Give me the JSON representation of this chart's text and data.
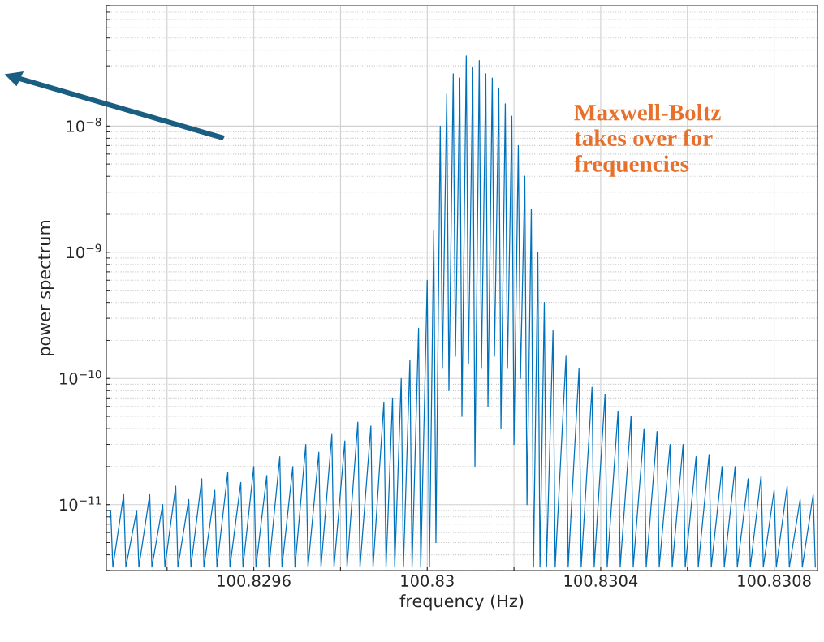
{
  "chart_data": {
    "type": "line",
    "xlabel": "frequency (Hz)",
    "ylabel": "power spectrum",
    "log": "y",
    "grid": true,
    "annotations": [
      "Maxwell-Boltz\ntakes over for\nfrequencies"
    ],
    "xlim": [
      100.82926,
      100.8309
    ],
    "ylim": [
      3e-12,
      9e-08
    ],
    "xticks": [
      {
        "value": 100.8294,
        "label": null
      },
      100.8296,
      {
        "value": 100.8298,
        "label": null
      },
      {
        "value": 100.83,
        "label": "100.83"
      },
      {
        "value": 100.8302,
        "label": null
      },
      100.8304,
      {
        "value": 100.8306,
        "label": null
      },
      100.8308
    ],
    "yticks": [
      {
        "value": 1e-11,
        "label": "10$^{−11}$"
      },
      {
        "value": 1e-10,
        "label": "10$^{−10}$"
      },
      {
        "value": 1e-09,
        "label": "10$^{−9}$"
      },
      {
        "value": 1e-08,
        "label": "10$^{−8}$"
      }
    ],
    "series": [
      {
        "color": "#0072bd",
        "x": [
          100.82927,
          100.829275,
          100.8293,
          100.829305,
          100.82933,
          100.829335,
          100.82936,
          100.829365,
          100.82939,
          100.829395,
          100.82942,
          100.829425,
          100.82945,
          100.829455,
          100.82948,
          100.829485,
          100.82951,
          100.829515,
          100.82954,
          100.829545,
          100.82957,
          100.829575,
          100.8296,
          100.829605,
          100.82963,
          100.829635,
          100.82966,
          100.829665,
          100.82969,
          100.829695,
          100.82972,
          100.829725,
          100.82975,
          100.829755,
          100.82978,
          100.829785,
          100.82981,
          100.829815,
          100.82984,
          100.829845,
          100.82987,
          100.829875,
          100.8299,
          100.829905,
          100.82992,
          100.829925,
          100.82994,
          100.829945,
          100.82996,
          100.829965,
          100.82998,
          100.829985,
          100.83,
          100.830005,
          100.830015,
          100.83002,
          100.83003,
          100.830035,
          100.830045,
          100.83005,
          100.83006,
          100.830065,
          100.830075,
          100.83008,
          100.83009,
          100.830095,
          100.830105,
          100.83011,
          100.83012,
          100.830125,
          100.830135,
          100.83014,
          100.83015,
          100.830155,
          100.830165,
          100.83017,
          100.83018,
          100.830185,
          100.830195,
          100.8302,
          100.83021,
          100.830215,
          100.830225,
          100.83023,
          100.83024,
          100.830245,
          100.830255,
          100.83026,
          100.83027,
          100.830275,
          100.83029,
          100.830295,
          100.83032,
          100.830325,
          100.83035,
          100.830355,
          100.83038,
          100.830385,
          100.83041,
          100.830415,
          100.83044,
          100.830445,
          100.83047,
          100.830475,
          100.8305,
          100.830505,
          100.83053,
          100.830535,
          100.83056,
          100.830565,
          100.83059,
          100.830595,
          100.83062,
          100.830625,
          100.83065,
          100.830655,
          100.83068,
          100.830685,
          100.83071,
          100.830715,
          100.83074,
          100.830745,
          100.83077,
          100.830775,
          100.8308,
          100.830805,
          100.83083,
          100.830835,
          100.83086,
          100.830865,
          100.83089,
          100.830895
        ],
        "values": [
          9e-12,
          3.2e-12,
          1.2e-11,
          3.2e-12,
          9e-12,
          3.2e-12,
          1.2e-11,
          3.2e-12,
          1e-11,
          3.2e-12,
          1.4e-11,
          3.2e-12,
          1.1e-11,
          3.2e-12,
          1.6e-11,
          3.2e-12,
          1.3e-11,
          3.2e-12,
          1.8e-11,
          3.2e-12,
          1.5e-11,
          3.2e-12,
          2e-11,
          3.2e-12,
          1.7e-11,
          3.2e-12,
          2.4e-11,
          3.2e-12,
          2e-11,
          3.2e-12,
          3e-11,
          3.2e-12,
          2.6e-11,
          3.2e-12,
          3.6e-11,
          3.2e-12,
          3.2e-11,
          3.2e-12,
          4.5e-11,
          3.2e-12,
          4.2e-11,
          3.2e-12,
          6.5e-11,
          3.2e-12,
          7e-11,
          3.2e-12,
          1e-10,
          3.2e-12,
          1.4e-10,
          3.2e-12,
          2.5e-10,
          3.2e-12,
          6e-10,
          3.2e-12,
          1.5e-09,
          5e-12,
          1e-08,
          1.2e-10,
          1.8e-08,
          8e-11,
          2.6e-08,
          1.5e-10,
          2.4e-08,
          5e-11,
          3.6e-08,
          1.3e-10,
          2.9e-08,
          2e-11,
          3.3e-08,
          1.2e-10,
          2.6e-08,
          6e-11,
          2.4e-08,
          1.5e-10,
          2e-08,
          4e-11,
          1.5e-08,
          1.2e-10,
          1.2e-08,
          3e-11,
          7e-09,
          1e-10,
          4e-09,
          1e-11,
          2.2e-09,
          3.2e-12,
          1e-09,
          3.2e-12,
          4e-10,
          3.2e-12,
          2.4e-10,
          3.2e-12,
          1.5e-10,
          3.2e-12,
          1.2e-10,
          3.2e-12,
          8.5e-11,
          3.2e-12,
          7.5e-11,
          3.2e-12,
          5.5e-11,
          3.2e-12,
          5e-11,
          3.2e-12,
          4e-11,
          3.2e-12,
          3.8e-11,
          3.2e-12,
          3e-11,
          3.2e-12,
          3e-11,
          3.2e-12,
          2.4e-11,
          3.2e-12,
          2.5e-11,
          3.2e-12,
          2e-11,
          3.2e-12,
          2e-11,
          3.2e-12,
          1.6e-11,
          3.2e-12,
          1.7e-11,
          3.2e-12,
          1.3e-11,
          3.2e-12,
          1.4e-11,
          3.2e-12,
          1.1e-11,
          3.2e-12,
          1.2e-11,
          3.2e-12
        ]
      }
    ]
  }
}
